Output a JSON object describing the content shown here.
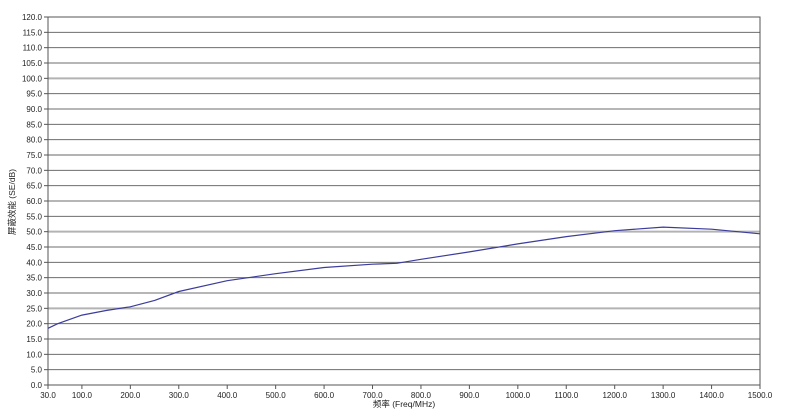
{
  "chart_data": {
    "type": "line",
    "title": "",
    "xlabel": "频率 (Freq/MHz)",
    "ylabel": "屏蔽效能 (SE/dB)",
    "xlim": [
      30,
      1500
    ],
    "ylim": [
      0,
      120
    ],
    "ytick_step": 5.0,
    "xticks": [
      30.0,
      100.0,
      200.0,
      300.0,
      400.0,
      500.0,
      600.0,
      700.0,
      800.0,
      900.0,
      1000.0,
      1100.0,
      1200.0,
      1300.0,
      1400.0,
      1500.0
    ],
    "grid": "horizontal-only",
    "grid_major_every": 25,
    "legend": "none",
    "series": [
      {
        "name": "SE",
        "x": [
          30,
          50,
          100,
          150,
          200,
          250,
          300,
          400,
          500,
          600,
          700,
          750,
          800,
          900,
          1000,
          1100,
          1200,
          1300,
          1400,
          1500
        ],
        "y": [
          18.5,
          20.0,
          22.8,
          24.3,
          25.5,
          27.6,
          30.5,
          34.0,
          36.3,
          38.3,
          39.4,
          39.7,
          41.0,
          43.4,
          46.0,
          48.4,
          50.3,
          51.5,
          50.8,
          49.3
        ]
      }
    ],
    "colors": {
      "line": "#3c3c9c",
      "grid_minor": "#6e6e6e",
      "grid_major": "#b3b3b3",
      "frame": "#555555",
      "tick": "#555555",
      "text": "#222222",
      "background": "#ffffff"
    }
  }
}
